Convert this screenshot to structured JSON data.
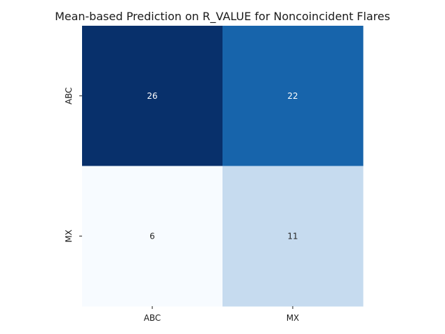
{
  "chart_data": {
    "type": "heatmap",
    "title": "Mean-based Prediction on R_VALUE for Noncoincident Flares",
    "xlabel": "",
    "ylabel": "",
    "x_categories": [
      "ABC",
      "MX"
    ],
    "y_categories": [
      "ABC",
      "MX"
    ],
    "values": [
      [
        26,
        22
      ],
      [
        6,
        11
      ]
    ],
    "colormap": "Blues",
    "color_range": [
      6,
      26
    ],
    "colorbar": false,
    "grid": false
  }
}
